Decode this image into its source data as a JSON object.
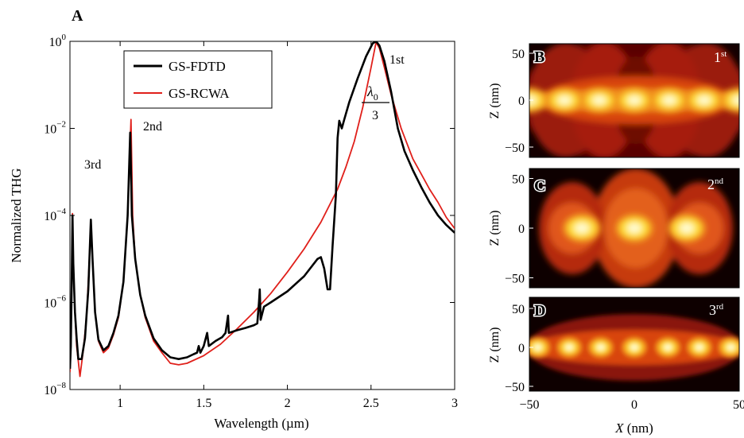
{
  "chart_data": [
    {
      "panel": "A",
      "type": "line",
      "xlabel": "Wavelength (µm)",
      "ylabel": "Normalized THG",
      "xlim": [
        0.7,
        3.0
      ],
      "ylim": [
        1e-08,
        1
      ],
      "yscale": "log",
      "grid": false,
      "legend_position": "top-left-inside",
      "xticks": [
        {
          "v": 1,
          "label": "1"
        },
        {
          "v": 1.5,
          "label": "1.5"
        },
        {
          "v": 2,
          "label": "2"
        },
        {
          "v": 2.5,
          "label": "2.5"
        },
        {
          "v": 3,
          "label": "3"
        }
      ],
      "yticks": [
        {
          "exp": -8,
          "base": "10",
          "sup": "−8"
        },
        {
          "exp": -6,
          "base": "10",
          "sup": "−6"
        },
        {
          "exp": -4,
          "base": "10",
          "sup": "−4"
        },
        {
          "exp": -2,
          "base": "10",
          "sup": "−2"
        },
        {
          "exp": 0,
          "base": "10",
          "sup": "0"
        }
      ],
      "annotations": {
        "third": "3rd",
        "second": "2nd",
        "first": "1st",
        "fraction_num": "λ",
        "fraction_sub": "0",
        "fraction_den": "3"
      },
      "series": [
        {
          "name": "GS-FDTD",
          "color": "#000000",
          "points": [
            [
              0.7,
              3e-08
            ],
            [
              0.705,
              1e-07
            ],
            [
              0.71,
              2e-06
            ],
            [
              0.715,
              0.0001
            ],
            [
              0.72,
              8e-06
            ],
            [
              0.73,
              6e-07
            ],
            [
              0.74,
              1.5e-07
            ],
            [
              0.75,
              5e-08
            ],
            [
              0.77,
              5e-08
            ],
            [
              0.79,
              1.5e-07
            ],
            [
              0.81,
              2e-06
            ],
            [
              0.825,
              8e-05
            ],
            [
              0.835,
              1e-05
            ],
            [
              0.85,
              6e-07
            ],
            [
              0.87,
              1.4e-07
            ],
            [
              0.9,
              8e-08
            ],
            [
              0.93,
              1e-07
            ],
            [
              0.96,
              2e-07
            ],
            [
              0.99,
              5e-07
            ],
            [
              1.02,
              3e-06
            ],
            [
              1.045,
              0.0001
            ],
            [
              1.06,
              0.008
            ],
            [
              1.07,
              0.0001
            ],
            [
              1.09,
              1e-05
            ],
            [
              1.12,
              1.5e-06
            ],
            [
              1.15,
              5e-07
            ],
            [
              1.2,
              1.5e-07
            ],
            [
              1.25,
              8e-08
            ],
            [
              1.3,
              5.5e-08
            ],
            [
              1.35,
              5e-08
            ],
            [
              1.4,
              5.5e-08
            ],
            [
              1.44,
              6.5e-08
            ],
            [
              1.46,
              7e-08
            ],
            [
              1.47,
              1e-07
            ],
            [
              1.48,
              7e-08
            ],
            [
              1.5,
              1e-07
            ],
            [
              1.52,
              2e-07
            ],
            [
              1.53,
              1e-07
            ],
            [
              1.57,
              1.3e-07
            ],
            [
              1.61,
              1.6e-07
            ],
            [
              1.63,
              2e-07
            ],
            [
              1.645,
              5e-07
            ],
            [
              1.65,
              2e-07
            ],
            [
              1.7,
              2.3e-07
            ],
            [
              1.75,
              2.6e-07
            ],
            [
              1.8,
              3e-07
            ],
            [
              1.82,
              3.3e-07
            ],
            [
              1.83,
              1e-06
            ],
            [
              1.835,
              2e-06
            ],
            [
              1.84,
              4e-07
            ],
            [
              1.86,
              8e-07
            ],
            [
              1.9,
              1e-06
            ],
            [
              2.0,
              1.8e-06
            ],
            [
              2.1,
              4e-06
            ],
            [
              2.18,
              1e-05
            ],
            [
              2.2,
              1.1e-05
            ],
            [
              2.22,
              6e-06
            ],
            [
              2.24,
              2e-06
            ],
            [
              2.255,
              2e-06
            ],
            [
              2.27,
              2e-05
            ],
            [
              2.29,
              0.0003
            ],
            [
              2.3,
              0.006
            ],
            [
              2.31,
              0.015
            ],
            [
              2.325,
              0.01
            ],
            [
              2.34,
              0.016
            ],
            [
              2.37,
              0.04
            ],
            [
              2.42,
              0.14
            ],
            [
              2.47,
              0.45
            ],
            [
              2.51,
              0.9
            ],
            [
              2.53,
              1.0
            ],
            [
              2.55,
              0.8
            ],
            [
              2.58,
              0.35
            ],
            [
              2.62,
              0.07
            ],
            [
              2.66,
              0.01
            ],
            [
              2.7,
              0.003
            ],
            [
              2.75,
              0.0011
            ],
            [
              2.8,
              0.00045
            ],
            [
              2.85,
              0.0002
            ],
            [
              2.9,
              0.0001
            ],
            [
              2.95,
              6e-05
            ],
            [
              3.0,
              4e-05
            ]
          ]
        },
        {
          "name": "GS-RCWA",
          "color": "#e0201b",
          "points": [
            [
              0.7,
              2.5e-08
            ],
            [
              0.705,
              1e-07
            ],
            [
              0.71,
              2e-06
            ],
            [
              0.715,
              0.00011
            ],
            [
              0.72,
              8e-06
            ],
            [
              0.73,
              6e-07
            ],
            [
              0.74,
              1e-07
            ],
            [
              0.76,
              2e-08
            ],
            [
              0.78,
              8e-08
            ],
            [
              0.8,
              5e-07
            ],
            [
              0.815,
              8e-06
            ],
            [
              0.825,
              8e-05
            ],
            [
              0.835,
              1e-05
            ],
            [
              0.85,
              6e-07
            ],
            [
              0.87,
              1.3e-07
            ],
            [
              0.9,
              7e-08
            ],
            [
              0.93,
              9e-08
            ],
            [
              0.96,
              1.8e-07
            ],
            [
              0.99,
              4.5e-07
            ],
            [
              1.02,
              3e-06
            ],
            [
              1.045,
              0.0001
            ],
            [
              1.065,
              0.016
            ],
            [
              1.075,
              0.0001
            ],
            [
              1.09,
              1e-05
            ],
            [
              1.12,
              1.5e-06
            ],
            [
              1.15,
              4.5e-07
            ],
            [
              1.2,
              1.3e-07
            ],
            [
              1.25,
              7e-08
            ],
            [
              1.3,
              4e-08
            ],
            [
              1.35,
              3.7e-08
            ],
            [
              1.4,
              4e-08
            ],
            [
              1.5,
              6e-08
            ],
            [
              1.6,
              1.1e-07
            ],
            [
              1.7,
              2.5e-07
            ],
            [
              1.8,
              6e-07
            ],
            [
              1.9,
              1.6e-06
            ],
            [
              2.0,
              5e-06
            ],
            [
              2.1,
              1.7e-05
            ],
            [
              2.2,
              7e-05
            ],
            [
              2.3,
              0.0004
            ],
            [
              2.35,
              0.0013
            ],
            [
              2.4,
              0.005
            ],
            [
              2.45,
              0.03
            ],
            [
              2.5,
              0.25
            ],
            [
              2.53,
              0.95
            ],
            [
              2.55,
              0.7
            ],
            [
              2.58,
              0.25
            ],
            [
              2.62,
              0.06
            ],
            [
              2.68,
              0.01
            ],
            [
              2.75,
              0.002
            ],
            [
              2.8,
              0.0009
            ],
            [
              2.85,
              0.0004
            ],
            [
              2.9,
              0.0002
            ],
            [
              2.95,
              9e-05
            ],
            [
              3.0,
              5e-05
            ]
          ]
        }
      ]
    },
    {
      "panel": "B",
      "type": "heatmap",
      "mode_label_base": "1",
      "mode_label_sup": "st",
      "colormap": "hot",
      "antinodes_x_nm": [
        -50,
        -33.3,
        -16.7,
        0,
        16.7,
        33.3,
        50
      ],
      "node_centre_x_nm": 0
    },
    {
      "panel": "C",
      "type": "heatmap",
      "mode_label_base": "2",
      "mode_label_sup": "nd",
      "colormap": "hot",
      "antinodes_x_nm": [
        -25,
        0,
        25
      ]
    },
    {
      "panel": "D",
      "type": "heatmap",
      "mode_label_base": "3",
      "mode_label_sup": "rd",
      "colormap": "hot",
      "antinodes_x_nm": [
        -46,
        -31,
        -16,
        0,
        16,
        31,
        46
      ]
    }
  ],
  "panel_labels": {
    "a": "A",
    "b": "B",
    "c": "C",
    "d": "D"
  },
  "maps": {
    "zlabel": "Z (nm)",
    "xlabel_var": "X",
    "xlabel_unit": " (nm)",
    "zlim": [
      -60,
      60
    ],
    "xlim": [
      -50,
      50
    ],
    "zticks": [
      {
        "v": 50,
        "label": "50"
      },
      {
        "v": 0,
        "label": "0"
      },
      {
        "v": -50,
        "label": "−50"
      }
    ],
    "xticks": [
      {
        "v": -50,
        "label": "−50"
      },
      {
        "v": 0,
        "label": "0"
      },
      {
        "v": 50,
        "label": "50"
      }
    ]
  }
}
